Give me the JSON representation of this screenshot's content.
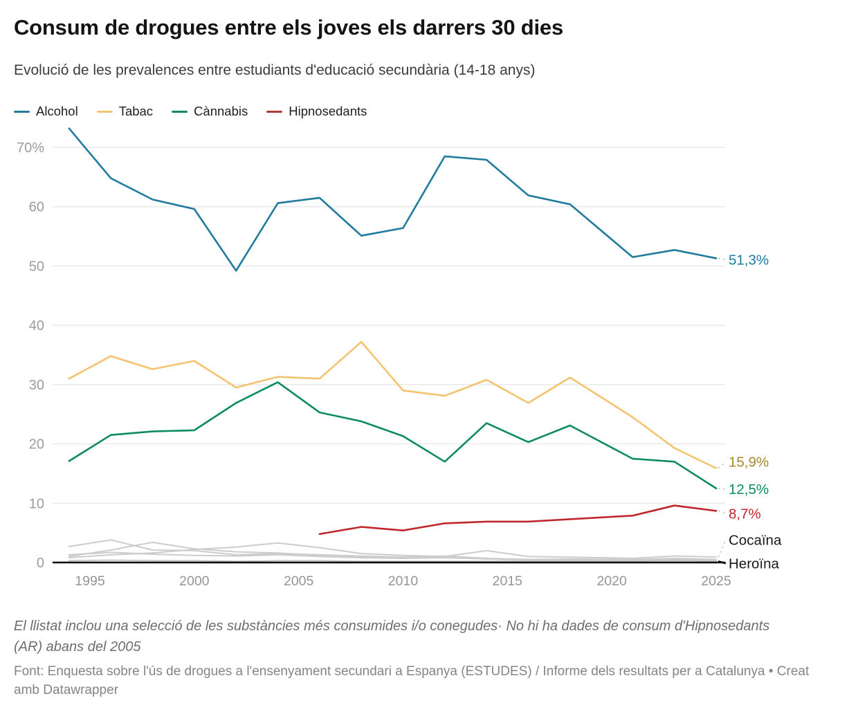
{
  "header": {
    "title": "Consum de drogues entre els joves els darrers 30 dies",
    "subtitle": "Evolució de les prevalences entre estudiants d'educació secundària (14-18 anys)"
  },
  "legend": {
    "items": [
      {
        "id": "alcohol",
        "label": "Alcohol",
        "color": "#1f7a9e"
      },
      {
        "id": "tabac",
        "label": "Tabac",
        "color": "#f4c36f"
      },
      {
        "id": "cannabis",
        "label": "Cànnabis",
        "color": "#0c8a64"
      },
      {
        "id": "hipnosedants",
        "label": "Hipnosedants",
        "color": "#b03a3a"
      }
    ]
  },
  "chart_data": {
    "type": "line",
    "title": "Consum de drogues entre els joves els darrers 30 dies",
    "xlabel": "",
    "ylabel": "",
    "ylim": [
      0,
      75
    ],
    "grid": "horizontal",
    "legend_position": "top",
    "x": [
      1994,
      1996,
      1998,
      2000,
      2002,
      2004,
      2006,
      2008,
      2010,
      2012,
      2014,
      2016,
      2018,
      2021,
      2023,
      2025
    ],
    "x_axis": {
      "ticks": [
        1995,
        2000,
        2005,
        2010,
        2015,
        2020,
        2025
      ]
    },
    "y_axis": {
      "ticks": [
        0,
        10,
        20,
        30,
        40,
        50,
        60,
        70
      ],
      "top_tick_label": "70%"
    },
    "series": [
      {
        "id": "altres-1",
        "name": "",
        "color": "#cccccc",
        "width": 2,
        "values": [
          2.7,
          3.8,
          2.1,
          2.0,
          1.3,
          1.5,
          1.3,
          1.1,
          0.9,
          1.1,
          0.7,
          0.5,
          0.6,
          0.5,
          0.7,
          0.5
        ]
      },
      {
        "id": "altres-2",
        "name": "",
        "color": "#cccccc",
        "width": 2,
        "values": [
          1.0,
          2.1,
          3.4,
          2.3,
          1.8,
          1.6,
          1.2,
          0.9,
          0.8,
          0.9,
          0.6,
          0.5,
          0.5,
          0.4,
          0.6,
          0.4
        ]
      },
      {
        "id": "altres-3",
        "name": "",
        "color": "#cccccc",
        "width": 2,
        "values": [
          1.3,
          1.7,
          1.4,
          1.2,
          1.1,
          1.3,
          1.0,
          0.8,
          0.7,
          0.8,
          0.6,
          0.4,
          0.4,
          0.4,
          0.5,
          0.4
        ]
      },
      {
        "id": "cocaina",
        "name": "Cocaïna",
        "color": "#cccccc",
        "width": 2,
        "values": [
          0.8,
          1.3,
          1.6,
          2.2,
          2.6,
          3.3,
          2.5,
          1.5,
          1.2,
          1.0,
          2.0,
          1.0,
          0.9,
          0.7,
          1.1,
          0.9
        ],
        "end_label": {
          "text": "Cocaïna",
          "color": "#1a1a1a"
        }
      },
      {
        "id": "heroina",
        "name": "Heroïna",
        "color": "#c6c6c6",
        "width": 2,
        "values": [
          0.3,
          0.4,
          0.3,
          0.3,
          0.2,
          0.3,
          0.3,
          0.2,
          0.2,
          0.2,
          0.2,
          0.2,
          0.2,
          0.2,
          0.3,
          0.2
        ],
        "end_label": {
          "text": "Heroïna",
          "color": "#1a1a1a"
        }
      },
      {
        "id": "tabac",
        "name": "Tabac",
        "color": "#f4c36f",
        "width": 2.6,
        "values": [
          31.0,
          34.8,
          32.6,
          34.0,
          29.5,
          31.3,
          31.0,
          37.2,
          29.0,
          28.1,
          30.8,
          26.9,
          31.2,
          24.5,
          19.3,
          15.9
        ],
        "end_label": {
          "text": "15,9%",
          "color": "#a8862e"
        }
      },
      {
        "id": "cannabis",
        "name": "Cànnabis",
        "color": "#0c8a64",
        "width": 2.6,
        "values": [
          17.1,
          21.5,
          22.1,
          22.3,
          26.9,
          30.4,
          25.3,
          23.8,
          21.3,
          17.0,
          23.5,
          20.3,
          23.1,
          17.5,
          17.0,
          12.5
        ],
        "end_label": {
          "text": "12,5%",
          "color": "#0b8a63"
        }
      },
      {
        "id": "alcohol",
        "name": "Alcohol",
        "color": "#1f7a9e",
        "width": 2.6,
        "values": [
          73.2,
          64.8,
          61.2,
          59.6,
          49.2,
          60.6,
          61.5,
          55.1,
          56.4,
          68.5,
          67.9,
          61.9,
          60.4,
          51.5,
          52.7,
          51.3
        ],
        "end_label": {
          "text": "51,3%",
          "color": "#1d7c9f"
        }
      },
      {
        "id": "hipnosedants",
        "name": "Hipnosedants",
        "color": "#c0272d",
        "width": 2.6,
        "values": [
          null,
          null,
          null,
          null,
          null,
          null,
          4.8,
          6.0,
          5.4,
          6.6,
          6.9,
          6.9,
          7.3,
          7.9,
          9.6,
          8.7
        ],
        "end_label": {
          "text": "8,7%",
          "color": "#c5232b"
        }
      }
    ]
  },
  "footer": {
    "footnote": "El llistat inclou una selecció de les substàncies més consumides i/o conegudes· No hi ha dades de consum d'Hipnosedants (AR) abans del 2005",
    "source_text": "Font: Enquesta sobre l'ús de drogues a l'ensenyament secundari a Espanya (ESTUDES) / Informe dels resultats per a Catalunya",
    "separator": " • ",
    "credit": "Creat amb Datawrapper"
  }
}
